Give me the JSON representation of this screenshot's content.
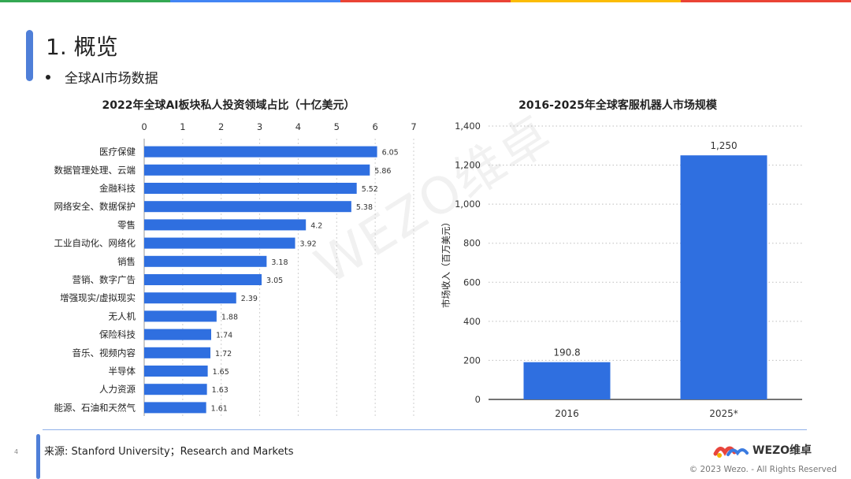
{
  "page": {
    "title": "1. 概览",
    "bullet": "全球AI市场数据",
    "page_number": "4",
    "source": "来源: Stanford University；Research and Markets",
    "logo_text": "WEZO维卓",
    "copyright": "© 2023 Wezo. - All Rights Reserved",
    "watermark": "WEZO维卓",
    "topbar_colors": [
      "#34a853",
      "#4285f4",
      "#ea4335",
      "#fbbc05",
      "#ea4335"
    ]
  },
  "chart_data": [
    {
      "type": "bar",
      "orientation": "horizontal",
      "title": "2022年全球AI板块私人投资领域占比（十亿美元）",
      "categories": [
        "医疗保健",
        "数据管理处理、云端",
        "金融科技",
        "网络安全、数据保护",
        "零售",
        "工业自动化、网络化",
        "销售",
        "营销、数字广告",
        "增强现实/虚拟现实",
        "无人机",
        "保险科技",
        "音乐、视频内容",
        "半导体",
        "人力资源",
        "能源、石油和天然气"
      ],
      "values": [
        6.05,
        5.86,
        5.52,
        5.38,
        4.2,
        3.92,
        3.18,
        3.05,
        2.39,
        1.88,
        1.74,
        1.72,
        1.65,
        1.63,
        1.61
      ],
      "labels": [
        "6.05",
        "5.86",
        "5.52",
        "5.38",
        "4.2",
        "3.92",
        "3.18",
        "3.05",
        "2.39",
        "1.88",
        "1.74",
        "1.72",
        "1.65",
        "1.63",
        "1.61"
      ],
      "xlim": [
        0,
        7
      ],
      "ticks": [
        "0",
        "1",
        "2",
        "3",
        "4",
        "5",
        "6",
        "7"
      ],
      "axis_position": "top",
      "color": "#2f6fe0"
    },
    {
      "type": "bar",
      "orientation": "vertical",
      "title": "2016-2025年全球客服机器人市场规模",
      "categories": [
        "2016",
        "2025*"
      ],
      "values": [
        190.8,
        1250
      ],
      "labels": [
        "190.8",
        "1,250"
      ],
      "ylabel": "市场收入（百万美元）",
      "ylim": [
        0,
        1400
      ],
      "ticks": [
        "0",
        "200",
        "400",
        "600",
        "800",
        "1,000",
        "1,200",
        "1,400"
      ],
      "grid": "dotted",
      "color": "#2f6fe0"
    }
  ]
}
